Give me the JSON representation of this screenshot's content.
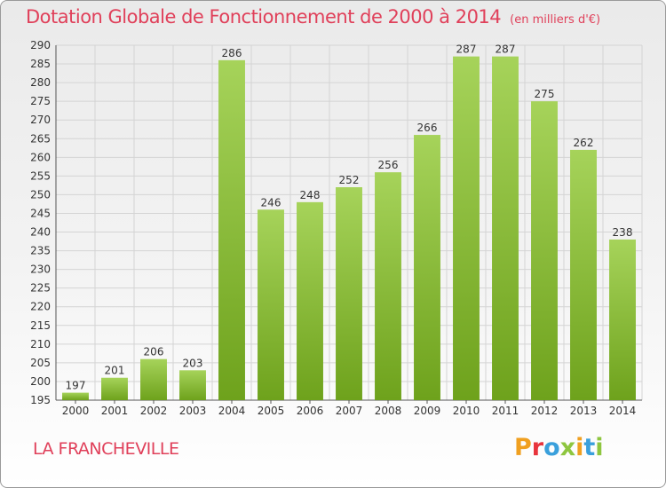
{
  "header": {
    "title": "Dotation Globale de Fonctionnement de 2000 à 2014",
    "unit": "(en milliers d'€)"
  },
  "footer": {
    "commune": "LA FRANCHEVILLE",
    "logo_text": "Proxiti",
    "logo_colors": [
      "#f0a020",
      "#e8343c",
      "#3aa0dc",
      "#8ec63f",
      "#f0a020",
      "#3aa0dc",
      "#8ec63f"
    ]
  },
  "colors": {
    "bar_light": "#a6d35a",
    "bar_dark": "#6ea21c",
    "title": "#e0405a",
    "grid": "#d4d4d4"
  },
  "chart_data": {
    "type": "bar",
    "title": "Dotation Globale de Fonctionnement de 2000 à 2014",
    "subtitle": "(en milliers d'€)",
    "categories": [
      "2000",
      "2001",
      "2002",
      "2003",
      "2004",
      "2005",
      "2006",
      "2007",
      "2008",
      "2009",
      "2010",
      "2011",
      "2012",
      "2013",
      "2014"
    ],
    "values": [
      197,
      201,
      206,
      203,
      286,
      246,
      248,
      252,
      256,
      266,
      287,
      287,
      275,
      262,
      238
    ],
    "ylim": [
      195,
      290
    ],
    "yticks": [
      195,
      200,
      205,
      210,
      215,
      220,
      225,
      230,
      235,
      240,
      245,
      250,
      255,
      260,
      265,
      270,
      275,
      280,
      285,
      290
    ],
    "grid": true,
    "xlabel": "",
    "ylabel": ""
  }
}
